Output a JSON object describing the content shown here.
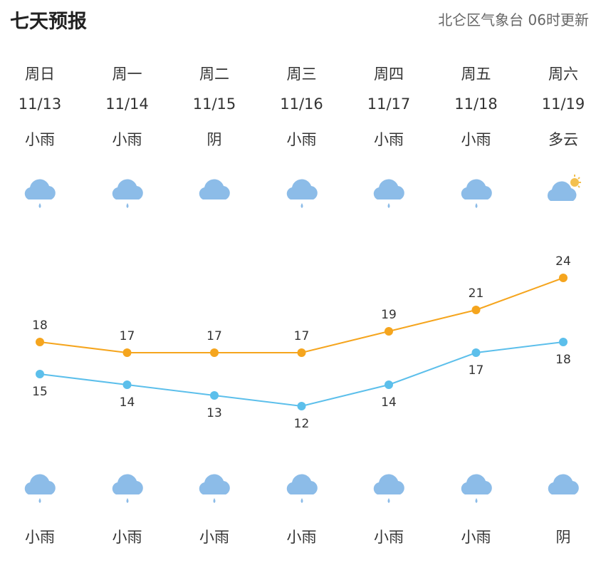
{
  "header": {
    "title": "七天预报",
    "source": "北仑区气象台 06时更新"
  },
  "days": [
    {
      "weekday": "周日",
      "date": "11/13",
      "day_weather": "小雨",
      "day_icon": "rain-icon",
      "night_icon": "rain-icon",
      "night_weather": "小雨"
    },
    {
      "weekday": "周一",
      "date": "11/14",
      "day_weather": "小雨",
      "day_icon": "rain-icon",
      "night_icon": "rain-icon",
      "night_weather": "小雨"
    },
    {
      "weekday": "周二",
      "date": "11/15",
      "day_weather": "阴",
      "day_icon": "cloud-icon",
      "night_icon": "rain-icon",
      "night_weather": "小雨"
    },
    {
      "weekday": "周三",
      "date": "11/16",
      "day_weather": "小雨",
      "day_icon": "rain-icon",
      "night_icon": "rain-icon",
      "night_weather": "小雨"
    },
    {
      "weekday": "周四",
      "date": "11/17",
      "day_weather": "小雨",
      "day_icon": "rain-icon",
      "night_icon": "rain-icon",
      "night_weather": "小雨"
    },
    {
      "weekday": "周五",
      "date": "11/18",
      "day_weather": "小雨",
      "day_icon": "rain-icon",
      "night_icon": "rain-icon",
      "night_weather": "小雨"
    },
    {
      "weekday": "周六",
      "date": "11/19",
      "day_weather": "多云",
      "day_icon": "partly-cloudy-icon",
      "night_icon": "cloud-icon",
      "night_weather": "阴"
    }
  ],
  "colors": {
    "high": "#f5a51e",
    "low": "#5cbfeb",
    "icon": "#8cbce8"
  },
  "chart_data": {
    "type": "line",
    "categories": [
      "11/13",
      "11/14",
      "11/15",
      "11/16",
      "11/17",
      "11/18",
      "11/19"
    ],
    "series": [
      {
        "values": [
          18,
          17,
          17,
          17,
          19,
          21,
          24
        ]
      },
      {
        "values": [
          15,
          14,
          13,
          12,
          14,
          17,
          18
        ]
      }
    ],
    "grid": false
  }
}
